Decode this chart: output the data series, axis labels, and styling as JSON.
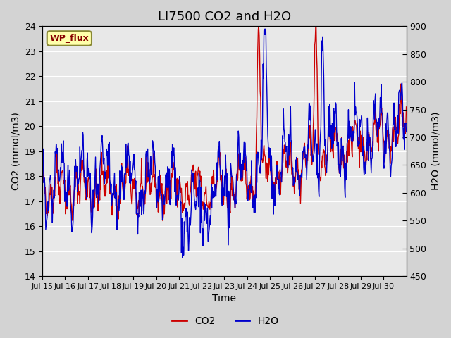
{
  "title": "LI7500 CO2 and H2O",
  "xlabel": "Time",
  "ylabel_left": "CO2 (mmol/m3)",
  "ylabel_right": "H2O (mmol/m3)",
  "watermark": "WP_flux",
  "co2_color": "#cc0000",
  "h2o_color": "#0000cc",
  "ylim_left": [
    14.0,
    24.0
  ],
  "ylim_right": [
    450,
    900
  ],
  "yticks_left": [
    14.0,
    15.0,
    16.0,
    17.0,
    18.0,
    19.0,
    20.0,
    21.0,
    22.0,
    23.0,
    24.0
  ],
  "yticks_right": [
    450,
    500,
    550,
    600,
    650,
    700,
    750,
    800,
    850,
    900
  ],
  "x_tick_labels": [
    "Jul 15",
    "Jul 16",
    "Jul 17",
    "Jul 18",
    "Jul 19",
    "Jul 20",
    "Jul 21",
    "Jul 22",
    "Jul 23",
    "Jul 24",
    "Jul 25",
    "Jul 26",
    "Jul 27",
    "Jul 28",
    "Jul 29",
    "Jul 30"
  ],
  "background_color": "#d3d3d3",
  "plot_bg_color": "#e8e8e8",
  "linewidth": 1.0,
  "title_fontsize": 13,
  "label_fontsize": 10,
  "tick_fontsize": 9
}
